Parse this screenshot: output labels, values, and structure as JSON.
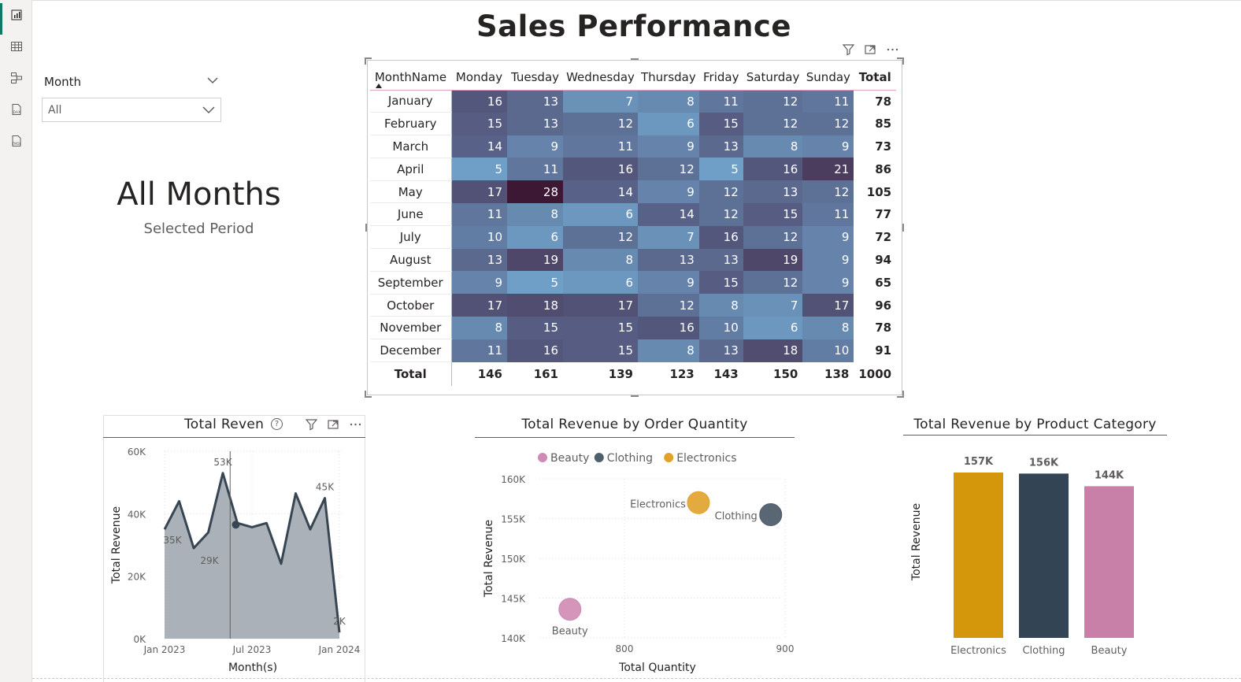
{
  "page": {
    "title": "Sales Performance"
  },
  "nav": {
    "items": [
      "report-view",
      "table-view",
      "model-view",
      "dax-query-view",
      "tmdl-view"
    ]
  },
  "slicer": {
    "title": "Month",
    "value": "All"
  },
  "card": {
    "value": "All Months",
    "label": "Selected Period"
  },
  "matrix": {
    "row_header": "MonthName",
    "columns": [
      "Monday",
      "Tuesday",
      "Wednesday",
      "Thursday",
      "Friday",
      "Saturday",
      "Sunday"
    ],
    "total_label": "Total",
    "rows": [
      {
        "month": "January",
        "values": [
          16,
          13,
          7,
          8,
          11,
          12,
          11
        ],
        "total": 78
      },
      {
        "month": "February",
        "values": [
          15,
          13,
          12,
          6,
          15,
          12,
          12
        ],
        "total": 85
      },
      {
        "month": "March",
        "values": [
          14,
          9,
          11,
          9,
          13,
          8,
          9
        ],
        "total": 73
      },
      {
        "month": "April",
        "values": [
          5,
          11,
          16,
          12,
          5,
          16,
          21
        ],
        "total": 86
      },
      {
        "month": "May",
        "values": [
          17,
          28,
          14,
          9,
          12,
          13,
          12
        ],
        "total": 105
      },
      {
        "month": "June",
        "values": [
          11,
          8,
          6,
          14,
          12,
          15,
          11
        ],
        "total": 77
      },
      {
        "month": "July",
        "values": [
          10,
          6,
          12,
          7,
          16,
          12,
          9
        ],
        "total": 72
      },
      {
        "month": "August",
        "values": [
          13,
          19,
          8,
          13,
          13,
          19,
          9
        ],
        "total": 94
      },
      {
        "month": "September",
        "values": [
          9,
          5,
          6,
          9,
          15,
          12,
          9
        ],
        "total": 65
      },
      {
        "month": "October",
        "values": [
          17,
          18,
          17,
          12,
          8,
          7,
          17
        ],
        "total": 96
      },
      {
        "month": "November",
        "values": [
          8,
          15,
          15,
          16,
          10,
          6,
          8
        ],
        "total": 78
      },
      {
        "month": "December",
        "values": [
          11,
          16,
          15,
          8,
          13,
          18,
          10
        ],
        "total": 91
      }
    ],
    "column_totals": [
      146,
      161,
      139,
      123,
      143,
      150,
      138
    ],
    "grand_total": 1000,
    "colors": {
      "low": "#6f9ec6",
      "mid": "#575f85",
      "high": "#3d1835"
    }
  },
  "chart_data": [
    {
      "type": "area",
      "title": "Total Reven",
      "xlabel": "Month(s)",
      "ylabel": "Total Revenue",
      "x_tick_labels": [
        "Jan 2023",
        "Jul 2023",
        "Jan 2024"
      ],
      "y_tick_labels": [
        "0K",
        "20K",
        "40K",
        "60K"
      ],
      "ylim": [
        0,
        60000
      ],
      "x": [
        "2023-01",
        "2023-02",
        "2023-03",
        "2023-04",
        "2023-05",
        "2023-06",
        "2023-07",
        "2023-08",
        "2023-09",
        "2023-10",
        "2023-11",
        "2023-12",
        "2024-01"
      ],
      "values": [
        35000,
        44000,
        29000,
        34000,
        53000,
        37000,
        35700,
        37000,
        24000,
        46500,
        35000,
        45000,
        2000
      ],
      "data_labels": [
        {
          "index": 0,
          "text": "35K"
        },
        {
          "index": 2,
          "text": "29K"
        },
        {
          "index": 4,
          "text": "53K"
        },
        {
          "index": 11,
          "text": "45K"
        },
        {
          "index": 12,
          "text": "2K"
        }
      ],
      "highlight_index": 5,
      "grid": true,
      "colors": {
        "line": "#374652",
        "fill": "#aab1b8"
      }
    },
    {
      "type": "scatter",
      "title": "Total Revenue by Order Quantity",
      "xlabel": "Total Quantity",
      "ylabel": "Total Revenue",
      "xlim": [
        750,
        900
      ],
      "ylim": [
        140000,
        160000
      ],
      "x_tick_labels": [
        "800",
        "900"
      ],
      "y_tick_labels": [
        "140K",
        "145K",
        "150K",
        "155K",
        "160K"
      ],
      "legend": {
        "position": "top",
        "entries": [
          "Beauty",
          "Clothing",
          "Electronics"
        ]
      },
      "series": [
        {
          "name": "Beauty",
          "x": [
            769
          ],
          "y": [
            143600
          ],
          "color": "#d08ab4"
        },
        {
          "name": "Clothing",
          "x": [
            894
          ],
          "y": [
            155500
          ],
          "color": "#4f5f6c"
        },
        {
          "name": "Electronics",
          "x": [
            849
          ],
          "y": [
            157000
          ],
          "color": "#e0a22a"
        }
      ],
      "grid": true
    },
    {
      "type": "bar",
      "title": "Total Revenue by Product Category",
      "ylabel": "Total Revenue",
      "categories": [
        "Electronics",
        "Clothing",
        "Beauty"
      ],
      "values": [
        157000,
        156000,
        144000
      ],
      "data_labels": [
        "157K",
        "156K",
        "144K"
      ],
      "colors": [
        "#d4960b",
        "#334555",
        "#c980a8"
      ]
    }
  ]
}
